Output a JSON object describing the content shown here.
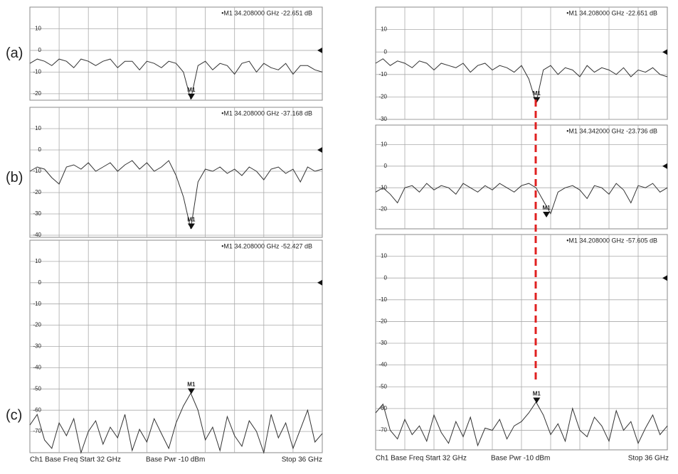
{
  "chart_data": [
    {
      "type": "line",
      "panel_label": "(a)",
      "xlim": [
        32,
        36
      ],
      "ylim": [
        -23,
        20
      ],
      "yticks": [
        10,
        0,
        -10,
        -20
      ],
      "grid": true,
      "x": [
        32.0,
        32.1,
        32.2,
        32.3,
        32.4,
        32.5,
        32.6,
        32.7,
        32.8,
        32.9,
        33.0,
        33.1,
        33.2,
        33.3,
        33.4,
        33.5,
        33.6,
        33.7,
        33.8,
        33.9,
        34.0,
        34.1,
        34.2,
        34.3,
        34.4,
        34.5,
        34.6,
        34.7,
        34.8,
        34.9,
        35.0,
        35.1,
        35.2,
        35.3,
        35.4,
        35.5,
        35.6,
        35.7,
        35.8,
        35.9,
        36.0
      ],
      "series": [
        {
          "color": "#333333",
          "values": [
            -6,
            -4,
            -5,
            -7,
            -4,
            -5,
            -8,
            -4,
            -5,
            -7,
            -5,
            -4,
            -8,
            -5,
            -5,
            -9,
            -5,
            -6,
            -8,
            -5,
            -6,
            -10,
            -22.6,
            -7,
            -5,
            -9,
            -6,
            -7,
            -11,
            -6,
            -5,
            -10,
            -6,
            -8,
            -9,
            -6,
            -11,
            -7,
            -7,
            -9,
            -10
          ]
        }
      ],
      "marker": {
        "label": "M1",
        "x": 34.208,
        "y": -22.651,
        "readout": "•M1  34.208000 GHz  -22.651 dB"
      }
    },
    {
      "type": "line",
      "panel_label": "(b)",
      "xlim": [
        32,
        36
      ],
      "ylim": [
        -41,
        20
      ],
      "yticks": [
        10,
        0,
        -10,
        -20,
        -30,
        -40
      ],
      "grid": true,
      "x": [
        32.0,
        32.1,
        32.2,
        32.3,
        32.4,
        32.5,
        32.6,
        32.7,
        32.8,
        32.9,
        33.0,
        33.1,
        33.2,
        33.3,
        33.4,
        33.5,
        33.6,
        33.7,
        33.8,
        33.9,
        34.0,
        34.1,
        34.2,
        34.3,
        34.4,
        34.5,
        34.6,
        34.7,
        34.8,
        34.9,
        35.0,
        35.1,
        35.2,
        35.3,
        35.4,
        35.5,
        35.6,
        35.7,
        35.8,
        35.9,
        36.0
      ],
      "series": [
        {
          "color": "#333333",
          "values": [
            -10,
            -8,
            -9,
            -13,
            -16,
            -8,
            -7,
            -9,
            -6,
            -10,
            -8,
            -6,
            -10,
            -7,
            -5,
            -9,
            -6,
            -10,
            -8,
            -5,
            -12,
            -22,
            -37,
            -15,
            -9,
            -10,
            -8,
            -11,
            -9,
            -12,
            -8,
            -10,
            -14,
            -9,
            -8,
            -11,
            -9,
            -15,
            -8,
            -10,
            -9
          ]
        }
      ],
      "marker": {
        "label": "M1",
        "x": 34.208,
        "y": -37.168,
        "readout": "•M1  34.208000 GHz  -37.168 dB"
      }
    },
    {
      "type": "line",
      "panel_label": "(c)",
      "xlim": [
        32,
        36
      ],
      "ylim": [
        -80,
        20
      ],
      "yticks": [
        10,
        0,
        -10,
        -20,
        -30,
        -40,
        -50,
        -60,
        -70
      ],
      "grid": true,
      "x": [
        32.0,
        32.1,
        32.2,
        32.3,
        32.4,
        32.5,
        32.6,
        32.7,
        32.8,
        32.9,
        33.0,
        33.1,
        33.2,
        33.3,
        33.4,
        33.5,
        33.6,
        33.7,
        33.8,
        33.9,
        34.0,
        34.1,
        34.2,
        34.3,
        34.4,
        34.5,
        34.6,
        34.7,
        34.8,
        34.9,
        35.0,
        35.1,
        35.2,
        35.3,
        35.4,
        35.5,
        35.6,
        35.7,
        35.8,
        35.9,
        36.0
      ],
      "series": [
        {
          "color": "#333333",
          "values": [
            -67,
            -62,
            -74,
            -78,
            -66,
            -72,
            -64,
            -80,
            -70,
            -65,
            -76,
            -68,
            -73,
            -62,
            -79,
            -69,
            -75,
            -64,
            -71,
            -78,
            -66,
            -58,
            -52,
            -60,
            -74,
            -68,
            -79,
            -63,
            -72,
            -77,
            -65,
            -70,
            -80,
            -62,
            -73,
            -66,
            -78,
            -69,
            -60,
            -75,
            -71
          ]
        }
      ],
      "marker": {
        "label": "M1",
        "x": 34.208,
        "y": -52.427,
        "readout": "•M1  34.208000 GHz  -52.427 dB"
      }
    },
    {
      "type": "line",
      "xlim": [
        32,
        36
      ],
      "ylim": [
        -30,
        20
      ],
      "yticks": [
        10,
        0,
        -10,
        -20,
        -30
      ],
      "grid": true,
      "x": [
        32.0,
        32.1,
        32.2,
        32.3,
        32.4,
        32.5,
        32.6,
        32.7,
        32.8,
        32.9,
        33.0,
        33.1,
        33.2,
        33.3,
        33.4,
        33.5,
        33.6,
        33.7,
        33.8,
        33.9,
        34.0,
        34.1,
        34.2,
        34.3,
        34.4,
        34.5,
        34.6,
        34.7,
        34.8,
        34.9,
        35.0,
        35.1,
        35.2,
        35.3,
        35.4,
        35.5,
        35.6,
        35.7,
        35.8,
        35.9,
        36.0
      ],
      "series": [
        {
          "color": "#333333",
          "values": [
            -5,
            -3,
            -6,
            -4,
            -5,
            -7,
            -4,
            -5,
            -8,
            -5,
            -6,
            -7,
            -5,
            -9,
            -6,
            -5,
            -8,
            -6,
            -7,
            -9,
            -6,
            -12,
            -22.6,
            -8,
            -6,
            -10,
            -7,
            -8,
            -11,
            -6,
            -9,
            -7,
            -8,
            -10,
            -7,
            -11,
            -8,
            -9,
            -7,
            -10,
            -11
          ]
        }
      ],
      "marker": {
        "label": "M1",
        "x": 34.208,
        "y": -22.651,
        "readout": "•M1  34.208000 GHz  -22.651 dB"
      }
    },
    {
      "type": "line",
      "xlim": [
        32,
        36
      ],
      "ylim": [
        -29,
        19
      ],
      "yticks": [
        10,
        0,
        -10,
        -20
      ],
      "grid": true,
      "x": [
        32.0,
        32.1,
        32.2,
        32.3,
        32.4,
        32.5,
        32.6,
        32.7,
        32.8,
        32.9,
        33.0,
        33.1,
        33.2,
        33.3,
        33.4,
        33.5,
        33.6,
        33.7,
        33.8,
        33.9,
        34.0,
        34.1,
        34.2,
        34.3,
        34.4,
        34.5,
        34.6,
        34.7,
        34.8,
        34.9,
        35.0,
        35.1,
        35.2,
        35.3,
        35.4,
        35.5,
        35.6,
        35.7,
        35.8,
        35.9,
        36.0
      ],
      "series": [
        {
          "color": "#333333",
          "values": [
            -12,
            -10,
            -13,
            -17,
            -10,
            -9,
            -12,
            -8,
            -11,
            -9,
            -10,
            -13,
            -8,
            -10,
            -12,
            -9,
            -11,
            -8,
            -10,
            -12,
            -9,
            -8,
            -10,
            -16,
            -22,
            -12,
            -10,
            -9,
            -11,
            -15,
            -9,
            -10,
            -13,
            -8,
            -11,
            -17,
            -9,
            -10,
            -8,
            -12,
            -10
          ]
        }
      ],
      "marker": {
        "label": "M1",
        "x": 34.342,
        "y": -23.736,
        "readout": "•M1  34.342000 GHz  -23.736 dB"
      }
    },
    {
      "type": "line",
      "xlim": [
        32,
        36
      ],
      "ylim": [
        -79,
        20
      ],
      "yticks": [
        10,
        0,
        -10,
        -20,
        -30,
        -40,
        -50,
        -60,
        -70
      ],
      "grid": true,
      "x": [
        32.0,
        32.1,
        32.2,
        32.3,
        32.4,
        32.5,
        32.6,
        32.7,
        32.8,
        32.9,
        33.0,
        33.1,
        33.2,
        33.3,
        33.4,
        33.5,
        33.6,
        33.7,
        33.8,
        33.9,
        34.0,
        34.1,
        34.2,
        34.3,
        34.4,
        34.5,
        34.6,
        34.7,
        34.8,
        34.9,
        35.0,
        35.1,
        35.2,
        35.3,
        35.4,
        35.5,
        35.6,
        35.7,
        35.8,
        35.9,
        36.0
      ],
      "series": [
        {
          "color": "#333333",
          "values": [
            -62,
            -58,
            -70,
            -74,
            -65,
            -72,
            -68,
            -75,
            -63,
            -71,
            -76,
            -66,
            -73,
            -64,
            -77,
            -69,
            -70,
            -65,
            -74,
            -68,
            -66,
            -62,
            -57,
            -63,
            -72,
            -67,
            -75,
            -60,
            -70,
            -73,
            -64,
            -68,
            -75,
            -61,
            -70,
            -66,
            -76,
            -69,
            -63,
            -72,
            -68
          ]
        }
      ],
      "marker": {
        "label": "M1",
        "x": 34.208,
        "y": -57.605,
        "readout": "•M1  34.208000 GHz  -57.605 dB"
      }
    }
  ],
  "footer_left": [
    "Ch1  Base Freq  Start 32 GHz",
    "Base Pwr  -10 dBm",
    "Stop 36 GHz"
  ],
  "footer_right": [
    "Ch1  Base Freq  Start 32 GHz",
    "Base Pwr  -10 dBm",
    "Stop 36 GHz"
  ]
}
